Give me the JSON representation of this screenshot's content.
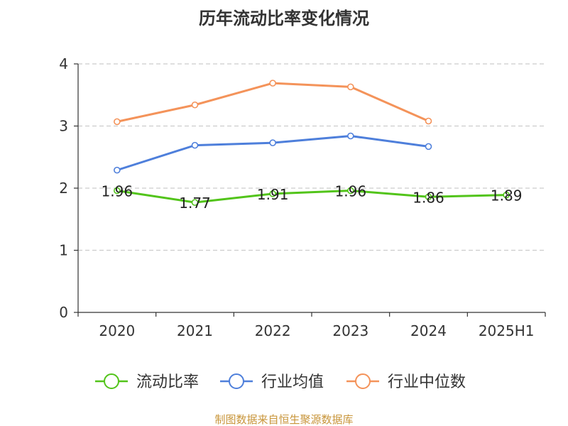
{
  "chart_data": {
    "type": "line",
    "title": "历年流动比率变化情况",
    "categories": [
      "2020",
      "2021",
      "2022",
      "2023",
      "2024",
      "2025H1"
    ],
    "ylim": [
      0,
      4
    ],
    "yticks": [
      0,
      1,
      2,
      3,
      4
    ],
    "grid": true,
    "legend_position": "bottom",
    "series": [
      {
        "name": "流动比率",
        "color": "#52c41a",
        "values": [
          1.96,
          1.77,
          1.91,
          1.96,
          1.86,
          1.89
        ],
        "labels": [
          "1.96",
          "1.77",
          "1.91",
          "1.96",
          "1.86",
          "1.89"
        ]
      },
      {
        "name": "行业均值",
        "color": "#4e7fdb",
        "values": [
          2.29,
          2.69,
          2.73,
          2.84,
          2.67,
          null
        ]
      },
      {
        "name": "行业中位数",
        "color": "#f4935a",
        "values": [
          3.07,
          3.34,
          3.69,
          3.63,
          3.08,
          null
        ]
      }
    ],
    "source_note": "制图数据来自恒生聚源数据库"
  }
}
